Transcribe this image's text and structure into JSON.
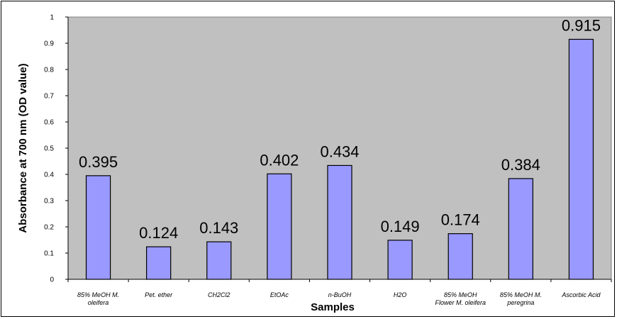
{
  "chart_data": {
    "type": "bar",
    "title": "",
    "xlabel": "Samples",
    "ylabel": "Absorbance at 700 nm (OD value)",
    "ylim": [
      0,
      1
    ],
    "yticks": [
      "0",
      "0.1",
      "0.2",
      "0.3",
      "0.4",
      "0.5",
      "0.6",
      "0.7",
      "0.8",
      "0.9",
      "1"
    ],
    "categories": [
      [
        "85% MeOH M.",
        "oleifera"
      ],
      [
        "Pet. ether"
      ],
      [
        "CH2Cl2"
      ],
      [
        "EtOAc"
      ],
      [
        "n-BuOH"
      ],
      [
        "H2O"
      ],
      [
        "85% MeOH",
        "Flower M. oleifera"
      ],
      [
        "85% MeOH  M.",
        "peregrina"
      ],
      [
        "Ascorbic Acid"
      ]
    ],
    "values": [
      0.395,
      0.124,
      0.143,
      0.402,
      0.434,
      0.149,
      0.174,
      0.384,
      0.915
    ],
    "data_labels": [
      "0.395",
      "0.124",
      "0.143",
      "0.402",
      "0.434",
      "0.149",
      "0.174",
      "0.384",
      "0.915"
    ],
    "grid": false,
    "legend": "none",
    "colors": {
      "plot_background": "#c0c0c0",
      "bar_fill": "#9999ff",
      "bar_stroke": "#000000"
    }
  }
}
